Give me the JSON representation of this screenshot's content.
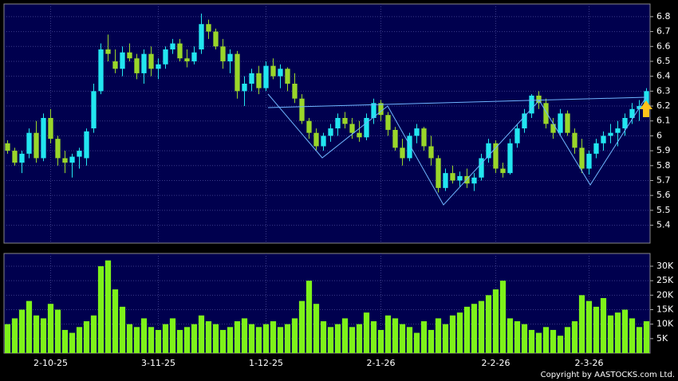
{
  "chart_data": [
    {
      "type": "candlestick",
      "open": [
        5.95,
        5.9,
        5.82,
        5.88,
        6.02,
        5.85,
        6.12,
        5.98,
        5.85,
        5.82,
        5.86,
        5.85,
        6.05,
        6.3,
        6.58,
        6.5,
        6.45,
        6.56,
        6.52,
        6.42,
        6.55,
        6.45,
        6.48,
        6.58,
        6.62,
        6.52,
        6.5,
        6.58,
        6.75,
        6.7,
        6.6,
        6.5,
        6.55,
        6.3,
        6.35,
        6.42,
        6.32,
        6.47,
        6.4,
        6.45,
        6.35,
        6.25,
        6.1,
        6.02,
        5.93,
        6.0,
        6.05,
        6.12,
        6.08,
        6.02,
        5.99,
        6.12,
        6.22,
        6.14,
        6.04,
        5.92,
        5.85,
        6.0,
        6.05,
        5.93,
        5.85,
        5.65,
        5.75,
        5.7,
        5.73,
        5.68,
        5.72,
        5.85,
        5.95,
        5.78,
        5.75,
        5.95,
        6.05,
        6.15,
        6.27,
        6.22,
        6.08,
        6.02,
        6.15,
        6.02,
        5.92,
        5.78,
        5.88,
        5.95,
        6.0,
        6.02,
        6.05,
        6.12,
        6.18,
        6.2
      ],
      "high": [
        5.97,
        5.92,
        5.9,
        6.05,
        6.1,
        6.15,
        6.18,
        6.0,
        5.9,
        5.88,
        5.92,
        6.05,
        6.35,
        6.62,
        6.68,
        6.58,
        6.6,
        6.62,
        6.55,
        6.58,
        6.6,
        6.52,
        6.6,
        6.65,
        6.65,
        6.58,
        6.6,
        6.82,
        6.78,
        6.72,
        6.65,
        6.58,
        6.57,
        6.4,
        6.45,
        6.47,
        6.5,
        6.52,
        6.48,
        6.46,
        6.42,
        6.28,
        6.12,
        6.05,
        6.02,
        6.08,
        6.15,
        6.16,
        6.12,
        6.1,
        6.15,
        6.25,
        6.24,
        6.16,
        6.06,
        5.98,
        6.02,
        6.08,
        6.06,
        6.0,
        5.87,
        5.78,
        5.8,
        5.76,
        5.78,
        5.75,
        5.88,
        5.98,
        5.97,
        5.82,
        5.98,
        6.08,
        6.18,
        6.28,
        6.3,
        6.25,
        6.12,
        6.18,
        6.17,
        6.05,
        5.98,
        5.9,
        5.98,
        6.03,
        6.08,
        6.1,
        6.15,
        6.22,
        6.24,
        6.32
      ],
      "low": [
        5.88,
        5.8,
        5.75,
        5.85,
        5.82,
        5.83,
        5.95,
        5.8,
        5.75,
        5.72,
        5.78,
        5.8,
        6.02,
        6.28,
        6.5,
        6.42,
        6.4,
        6.5,
        6.38,
        6.35,
        6.4,
        6.38,
        6.45,
        6.55,
        6.5,
        6.46,
        6.48,
        6.55,
        6.65,
        6.58,
        6.45,
        6.42,
        6.25,
        6.2,
        6.3,
        6.28,
        6.3,
        6.38,
        6.32,
        6.3,
        6.22,
        6.08,
        5.98,
        5.9,
        5.9,
        5.96,
        6.0,
        6.05,
        5.98,
        5.96,
        5.97,
        6.08,
        6.1,
        6.0,
        5.9,
        5.8,
        5.83,
        5.95,
        5.9,
        5.8,
        5.62,
        5.63,
        5.68,
        5.66,
        5.65,
        5.63,
        5.7,
        5.82,
        5.75,
        5.72,
        5.74,
        5.92,
        6.02,
        6.12,
        6.18,
        6.05,
        5.98,
        6.0,
        6.0,
        5.88,
        5.75,
        5.74,
        5.85,
        5.9,
        5.95,
        5.93,
        6.0,
        6.08,
        6.1,
        6.18
      ],
      "close": [
        5.9,
        5.82,
        5.88,
        6.02,
        5.85,
        6.12,
        5.98,
        5.85,
        5.82,
        5.86,
        5.9,
        6.03,
        6.3,
        6.58,
        6.55,
        6.45,
        6.56,
        6.52,
        6.42,
        6.55,
        6.45,
        6.48,
        6.58,
        6.62,
        6.52,
        6.5,
        6.56,
        6.75,
        6.7,
        6.6,
        6.5,
        6.55,
        6.3,
        6.35,
        6.42,
        6.32,
        6.47,
        6.4,
        6.45,
        6.35,
        6.25,
        6.1,
        6.02,
        5.93,
        6.0,
        6.05,
        6.12,
        6.08,
        6.02,
        5.99,
        6.12,
        6.22,
        6.14,
        6.04,
        5.92,
        5.85,
        6.0,
        6.05,
        5.93,
        5.85,
        5.65,
        5.75,
        5.7,
        5.73,
        5.68,
        5.72,
        5.85,
        5.95,
        5.78,
        5.75,
        5.95,
        6.05,
        6.15,
        6.27,
        6.22,
        6.08,
        6.02,
        6.15,
        6.02,
        5.92,
        5.78,
        5.88,
        5.95,
        6.0,
        6.02,
        6.05,
        6.12,
        6.18,
        6.2,
        6.3
      ],
      "up_color": "#22e6f0",
      "down_color": "#9ad62a",
      "ylim": [
        5.28,
        6.885
      ],
      "yticks": [
        5.4,
        5.5,
        5.6,
        5.7,
        5.8,
        5.9,
        6,
        6.1,
        6.2,
        6.3,
        6.4,
        6.5,
        6.6,
        6.7,
        6.8
      ],
      "grid": true
    },
    {
      "type": "bar",
      "categories": [
        null,
        null,
        null,
        null,
        null,
        null,
        "2-10-25",
        null,
        null,
        null,
        null,
        null,
        null,
        null,
        null,
        null,
        null,
        null,
        null,
        null,
        null,
        "3-11-25",
        null,
        null,
        null,
        null,
        null,
        null,
        null,
        null,
        null,
        null,
        null,
        null,
        null,
        null,
        "1-12-25",
        null,
        null,
        null,
        null,
        null,
        null,
        null,
        null,
        null,
        null,
        null,
        null,
        null,
        null,
        null,
        "2-1-26",
        null,
        null,
        null,
        null,
        null,
        null,
        null,
        null,
        null,
        null,
        null,
        null,
        null,
        null,
        null,
        "2-2-26",
        null,
        null,
        null,
        null,
        null,
        null,
        null,
        null,
        null,
        null,
        null,
        null,
        "2-3-26",
        null,
        null,
        null,
        null,
        null,
        null,
        null,
        null
      ],
      "values": [
        10000,
        12000,
        15000,
        18000,
        13000,
        12000,
        17000,
        15000,
        8000,
        7000,
        9000,
        11000,
        13000,
        30000,
        32000,
        22000,
        16000,
        10000,
        9000,
        12000,
        9000,
        8000,
        10000,
        12000,
        8000,
        9000,
        10000,
        13000,
        11000,
        10000,
        8000,
        9000,
        11000,
        12000,
        10000,
        9000,
        10000,
        11000,
        9000,
        10000,
        12000,
        18000,
        25000,
        17000,
        11000,
        9000,
        10000,
        12000,
        9000,
        10000,
        14000,
        11000,
        8000,
        13000,
        12000,
        10000,
        9000,
        7000,
        11000,
        8000,
        12000,
        10000,
        13000,
        14000,
        16000,
        17000,
        18000,
        20000,
        22000,
        25000,
        12000,
        11000,
        10000,
        8000,
        7000,
        9000,
        8000,
        6000,
        9000,
        11000,
        20000,
        18000,
        16000,
        19000,
        13000,
        14000,
        15000,
        12000,
        9000,
        11000
      ],
      "color": "#7ef21a",
      "ylim": [
        0,
        34400
      ],
      "yticks": [
        {
          "value": 5000,
          "label": "5K"
        },
        {
          "value": 10000,
          "label": "10K"
        },
        {
          "value": 15000,
          "label": "15K"
        },
        {
          "value": 20000,
          "label": "20K"
        },
        {
          "value": 25000,
          "label": "25K"
        },
        {
          "value": 30000,
          "label": "30K"
        }
      ],
      "grid": true,
      "copyright": "Copyright by AASTOCKS.com Ltd."
    }
  ]
}
